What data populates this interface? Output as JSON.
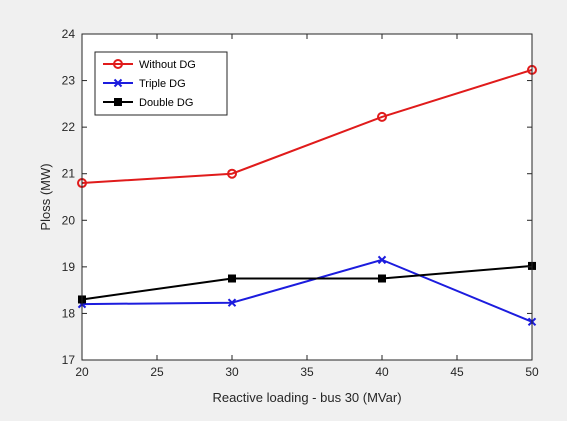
{
  "chart_data": {
    "type": "line",
    "title": "",
    "xlabel": "Reactive loading - bus 30 (MVar)",
    "ylabel": "Ploss (MW)",
    "x": [
      20,
      30,
      40,
      50
    ],
    "xlim": [
      20,
      50
    ],
    "ylim": [
      17,
      24
    ],
    "xticks": [
      "20",
      "25",
      "30",
      "35",
      "40",
      "45",
      "50"
    ],
    "yticks": [
      "17",
      "18",
      "19",
      "20",
      "21",
      "22",
      "23",
      "24"
    ],
    "grid": false,
    "legend_position": "top-left",
    "series": [
      {
        "name": "Without DG",
        "values": [
          20.8,
          21.0,
          22.22,
          23.23
        ],
        "color": "#e01b1b",
        "marker": "circle"
      },
      {
        "name": "Triple DG",
        "values": [
          18.2,
          18.23,
          19.15,
          17.82
        ],
        "color": "#1c1cde",
        "marker": "x"
      },
      {
        "name": "Double DG",
        "values": [
          18.3,
          18.75,
          18.75,
          19.02
        ],
        "color": "#000000",
        "marker": "square"
      }
    ]
  }
}
